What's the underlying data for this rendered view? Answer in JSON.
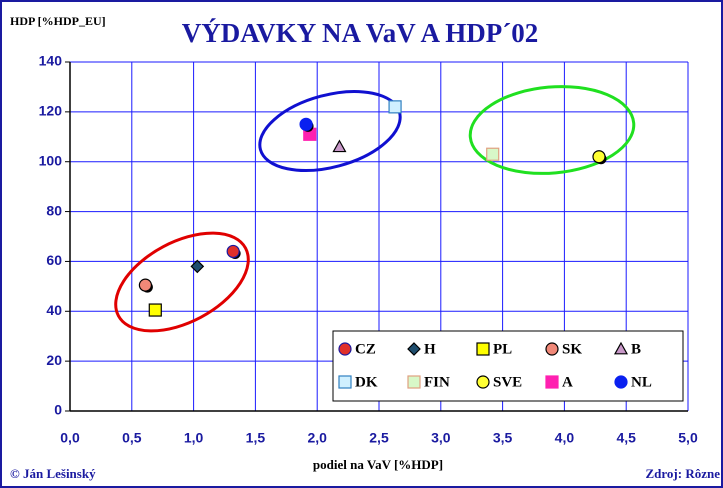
{
  "chart_data": {
    "type": "scatter",
    "title": "VÝDAVKY NA VaV A HDP´02",
    "y_label": "HDP [%HDP_EU]",
    "x_label": "podiel na VaV [%HDP]",
    "footer_left": "© Ján Lešinský",
    "footer_right": "Zdroj: Rôzne",
    "xlim": [
      0,
      5
    ],
    "ylim": [
      0,
      140
    ],
    "xticks": [
      {
        "value": 0,
        "label": "0,0"
      },
      {
        "value": 0.5,
        "label": "0,5"
      },
      {
        "value": 1,
        "label": "1,0"
      },
      {
        "value": 1.5,
        "label": "1,5"
      },
      {
        "value": 2,
        "label": "2,0"
      },
      {
        "value": 2.5,
        "label": "2,5"
      },
      {
        "value": 3,
        "label": "3,0"
      },
      {
        "value": 3.5,
        "label": "3,5"
      },
      {
        "value": 4,
        "label": "4,0"
      },
      {
        "value": 4.5,
        "label": "4,5"
      },
      {
        "value": 5,
        "label": "5,0"
      }
    ],
    "yticks": [
      0,
      20,
      40,
      60,
      80,
      100,
      120,
      140
    ],
    "grid": true,
    "legend": "lower right",
    "series": [
      {
        "name": "CZ",
        "marker": "circle",
        "color": "#e0302a",
        "edgecolor": "#1a1aa0",
        "x": [
          1.32
        ],
        "values": [
          64
        ]
      },
      {
        "name": "H",
        "marker": "diamond",
        "color": "#1f4e6e",
        "edgecolor": "#000000",
        "x": [
          1.03
        ],
        "values": [
          58
        ]
      },
      {
        "name": "PL",
        "marker": "square",
        "color": "#ffff00",
        "edgecolor": "#000000",
        "x": [
          0.69
        ],
        "values": [
          40.5
        ]
      },
      {
        "name": "SK",
        "marker": "circle",
        "color": "#f08878",
        "edgecolor": "#000000",
        "x": [
          0.61
        ],
        "values": [
          50.5
        ]
      },
      {
        "name": "B",
        "marker": "triangle",
        "color": "#c898c8",
        "edgecolor": "#000000",
        "x": [
          2.18
        ],
        "values": [
          106
        ]
      },
      {
        "name": "DK",
        "marker": "square",
        "color": "#d0f0ff",
        "edgecolor": "#3080c0",
        "x": [
          2.63
        ],
        "values": [
          122
        ]
      },
      {
        "name": "FIN",
        "marker": "square",
        "color": "#d8f8c8",
        "edgecolor": "#e0a080",
        "x": [
          3.42
        ],
        "values": [
          103
        ]
      },
      {
        "name": "SVE",
        "marker": "circle",
        "color": "#ffff33",
        "edgecolor": "#000000",
        "x": [
          4.28
        ],
        "values": [
          102
        ]
      },
      {
        "name": "A",
        "marker": "square",
        "color": "#ff20b0",
        "edgecolor": "#ff20b0",
        "x": [
          1.94
        ],
        "values": [
          111
        ]
      },
      {
        "name": "NL",
        "marker": "circle",
        "color": "#0a20f0",
        "edgecolor": "#0a20f0",
        "x": [
          1.91
        ],
        "values": [
          115
        ]
      }
    ]
  }
}
